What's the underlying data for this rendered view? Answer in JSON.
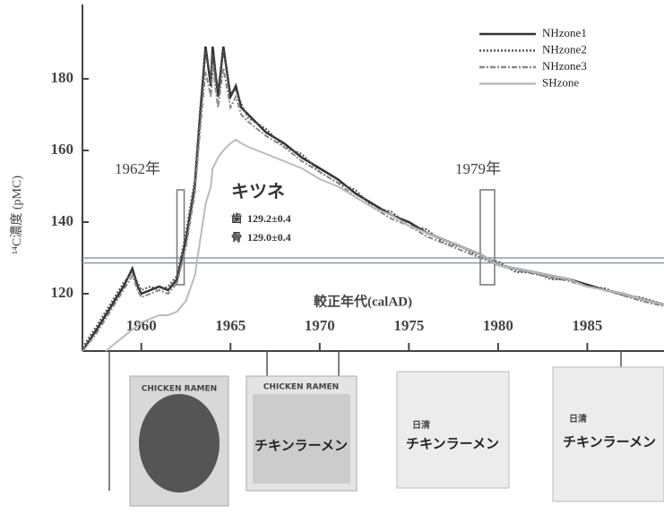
{
  "chart_data": {
    "type": "line",
    "y_label": "¹⁴C濃度 (pMC)",
    "x_label": "較正年代(calAD)",
    "xlim": [
      1956.7,
      1989.3
    ],
    "ylim": [
      104,
      200
    ],
    "xticks": [
      1960,
      1965,
      1970,
      1975,
      1980,
      1985
    ],
    "yticks": [
      120,
      140,
      160,
      180
    ],
    "x": [
      1956.7,
      1957.5,
      1958,
      1958.5,
      1959,
      1959.5,
      1959.8,
      1960,
      1960.5,
      1961,
      1961.5,
      1962,
      1962.5,
      1963,
      1963.3,
      1963.6,
      1963.9,
      1964,
      1964.3,
      1964.6,
      1965,
      1965.3,
      1965.6,
      1966,
      1967,
      1968,
      1969,
      1970,
      1971,
      1972,
      1973,
      1974,
      1975,
      1976,
      1977,
      1978,
      1979,
      1980,
      1981,
      1982,
      1983,
      1984,
      1985,
      1986,
      1987,
      1988,
      1989.3
    ],
    "series": [
      {
        "name": "NHzone1",
        "color": "#333333",
        "dash": "solid",
        "values": [
          104,
          110,
          114,
          118,
          122,
          127,
          122,
          120,
          121,
          122,
          121,
          124,
          135,
          150,
          170,
          189,
          178,
          189,
          175,
          189,
          175,
          178,
          172,
          170,
          165,
          162,
          158,
          155,
          152,
          148,
          145,
          142,
          140,
          137,
          135,
          133,
          131,
          128,
          127,
          126,
          125,
          124,
          122.5,
          121,
          120,
          118.5,
          117
        ]
      },
      {
        "name": "NHzone2",
        "color": "#555555",
        "dash": "dotted",
        "values": [
          105,
          111,
          115,
          119,
          123,
          126,
          123,
          121,
          122,
          121,
          122,
          125,
          137,
          152,
          172,
          188,
          180,
          187,
          177,
          188,
          176,
          177,
          173,
          169,
          166,
          161,
          159,
          154,
          151,
          149,
          144,
          143,
          139,
          138,
          134,
          133,
          130,
          129,
          126,
          126,
          124,
          124,
          122,
          121.5,
          119.5,
          119,
          117
        ]
      },
      {
        "name": "NHzone3",
        "color": "#888888",
        "dash": "dashdot",
        "values": [
          104,
          109,
          113,
          117,
          121,
          125,
          121,
          119,
          120,
          121,
          120,
          123,
          133,
          148,
          166,
          182,
          175,
          184,
          172,
          183,
          172,
          175,
          170,
          168,
          164,
          161,
          157,
          154,
          151,
          147,
          144,
          141,
          139,
          136,
          134,
          132,
          130,
          128,
          126.5,
          125.5,
          124.5,
          123.5,
          122,
          121,
          119.5,
          118,
          116.5
        ]
      },
      {
        "name": "SHzone",
        "color": "#bbbbbb",
        "dash": "solid",
        "values": [
          null,
          null,
          104,
          106,
          108,
          110,
          111,
          112,
          113,
          114,
          114,
          115,
          118,
          125,
          135,
          145,
          150,
          155,
          158,
          160,
          162,
          163,
          162,
          161,
          159,
          157,
          155,
          152,
          150,
          147,
          144,
          142,
          139,
          137,
          135,
          133,
          131,
          128,
          127,
          126,
          125,
          124,
          122,
          121,
          120,
          118.5,
          117
        ]
      }
    ],
    "hlines": [
      130,
      128.6
    ],
    "highlight_years": [
      1962,
      1979
    ],
    "annotations": [
      "1962年",
      "1979年",
      "キツネ",
      "歯",
      "129.2±0.4",
      "骨",
      "129.0±0.4"
    ]
  },
  "packages": [
    {
      "brand": "CHICKEN RAMEN"
    },
    {
      "brand": "CHICKEN RAMEN",
      "name": "チキンラーメン"
    },
    {
      "brand": "日清",
      "name": "チキンラーメン"
    },
    {
      "brand": "日清",
      "name": "チキンラーメン"
    }
  ]
}
